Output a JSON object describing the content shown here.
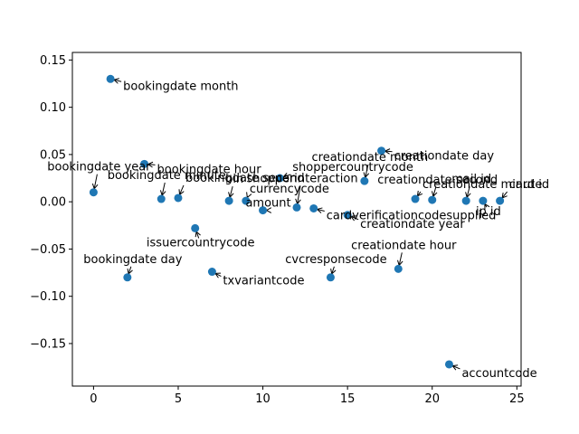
{
  "chart_data": {
    "type": "scatter",
    "title": "",
    "xlabel": "",
    "ylabel": "",
    "xlim": [
      -1.25,
      25.25
    ],
    "ylim": [
      -0.195,
      0.158
    ],
    "x_ticks": [
      0,
      5,
      10,
      15,
      20,
      25
    ],
    "y_ticks": [
      0.15,
      0.1,
      0.05,
      0.0,
      -0.05,
      -0.1,
      -0.15
    ],
    "x_tick_labels": [
      "0",
      "5",
      "10",
      "15",
      "20",
      "25"
    ],
    "y_tick_labels": [
      "0.15",
      "0.10",
      "0.05",
      "0.00",
      "−0.05",
      "−0.10",
      "−0.15"
    ],
    "grid": false,
    "marker_color": "#1f77b4",
    "points": [
      {
        "x": 0,
        "y": 0.01,
        "label": "bookingdate_year"
      },
      {
        "x": 1,
        "y": 0.13,
        "label": "bookingdate_month"
      },
      {
        "x": 2,
        "y": -0.08,
        "label": "bookingdate_day"
      },
      {
        "x": 3,
        "y": 0.04,
        "label": "bookingdate_hour"
      },
      {
        "x": 4,
        "y": 0.003,
        "label": "bookingdate_minute"
      },
      {
        "x": 5,
        "y": 0.004,
        "label": "bookingdate_second"
      },
      {
        "x": 6,
        "y": -0.028,
        "label": "issuercountrycode"
      },
      {
        "x": 7,
        "y": -0.074,
        "label": "txvariantcode"
      },
      {
        "x": 8,
        "y": 0.001,
        "label": "bin"
      },
      {
        "x": 9,
        "y": 0.001,
        "label": "currencycode"
      },
      {
        "x": 10,
        "y": -0.009,
        "label": "amount"
      },
      {
        "x": 11,
        "y": 0.025,
        "label": "shoppercountrycode"
      },
      {
        "x": 12,
        "y": -0.006,
        "label": "shopperinteraction"
      },
      {
        "x": 13,
        "y": -0.007,
        "label": "cardverificationcodesupplied"
      },
      {
        "x": 14,
        "y": -0.08,
        "label": "cvcresponsecode"
      },
      {
        "x": 15,
        "y": -0.014,
        "label": "creationdate_year"
      },
      {
        "x": 16,
        "y": 0.022,
        "label": "creationdate_month"
      },
      {
        "x": 17,
        "y": 0.054,
        "label": "creationdate_day"
      },
      {
        "x": 18,
        "y": -0.071,
        "label": "creationdate_hour"
      },
      {
        "x": 19,
        "y": 0.003,
        "label": "creationdate_minute"
      },
      {
        "x": 20,
        "y": 0.002,
        "label": "creationdate_second"
      },
      {
        "x": 21,
        "y": -0.172,
        "label": "accountcode"
      },
      {
        "x": 22,
        "y": 0.001,
        "label": "mail_id"
      },
      {
        "x": 23,
        "y": 0.001,
        "label": "ip_id"
      },
      {
        "x": 24,
        "y": 0.001,
        "label": "card_id"
      }
    ]
  }
}
